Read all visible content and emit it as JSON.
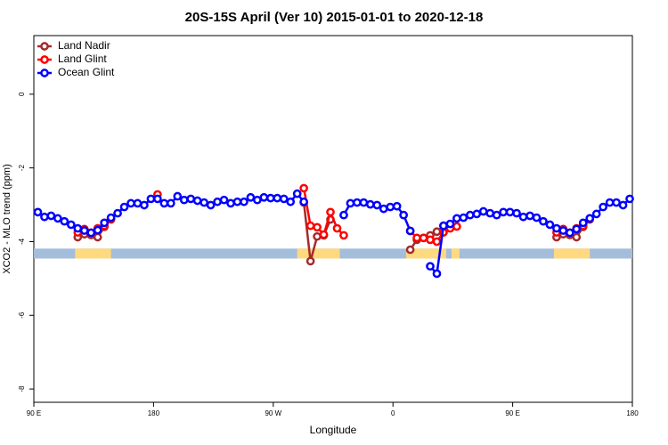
{
  "chart_data": {
    "type": "line",
    "title": "20S-15S April (Ver 10)   2015-01-01 to 2020-12-18",
    "x_label": "Longitude",
    "y_label": "XCO2 - MLO trend (ppm)",
    "xlim": [
      90,
      540
    ],
    "ylim": [
      -8.36,
      1.59
    ],
    "xticks": [
      {
        "value": 90,
        "label": "90 E"
      },
      180,
      {
        "value": 270,
        "label": "90 W"
      },
      {
        "value": 360,
        "label": "0"
      },
      {
        "value": 450,
        "label": "90 E"
      },
      {
        "value": 540,
        "label": "180"
      }
    ],
    "yticks": [
      0,
      -2,
      -4,
      -6,
      -8
    ],
    "legend": "top-left",
    "land_mask": {
      "ylim": [
        -4.46,
        -4.19
      ],
      "ocean_color": "#a4bddb",
      "land_color": "#ffd97f",
      "land": [
        [
          121,
          148
        ],
        [
          288,
          320
        ],
        [
          370,
          400
        ],
        [
          404,
          410
        ],
        [
          481,
          508
        ]
      ]
    },
    "x": [
      93,
      98,
      103,
      108,
      113,
      118,
      123,
      128,
      133,
      138,
      143,
      148,
      153,
      158,
      163,
      168,
      173,
      178,
      183,
      188,
      193,
      198,
      203,
      208,
      213,
      218,
      223,
      228,
      233,
      238,
      243,
      248,
      253,
      258,
      263,
      268,
      273,
      278,
      283,
      288,
      293,
      298,
      303,
      308,
      313,
      318,
      323,
      328,
      333,
      338,
      343,
      348,
      353,
      358,
      363,
      368,
      373,
      378,
      383,
      388,
      393,
      398,
      403,
      408,
      413,
      418,
      423,
      428,
      433,
      438,
      443,
      448,
      453,
      458,
      463,
      468,
      473,
      478,
      483,
      488,
      493,
      498,
      503,
      508,
      513,
      518,
      523,
      528,
      533,
      538
    ],
    "series": [
      {
        "name": "Land Nadir",
        "color": "#a52a2a",
        "values": [
          null,
          null,
          null,
          null,
          null,
          null,
          -3.88,
          -3.8,
          -3.82,
          -3.88,
          -3.6,
          -3.4,
          null,
          null,
          null,
          null,
          null,
          null,
          null,
          null,
          null,
          null,
          null,
          null,
          null,
          null,
          null,
          null,
          null,
          null,
          null,
          null,
          null,
          null,
          null,
          null,
          null,
          null,
          null,
          null,
          -2.94,
          -4.53,
          -3.86,
          -3.83,
          -3.4,
          null,
          null,
          null,
          null,
          null,
          null,
          null,
          null,
          null,
          null,
          null,
          -4.22,
          -3.95,
          -3.9,
          -3.83,
          -3.73,
          -3.57,
          null,
          null,
          null,
          null,
          null,
          null,
          null,
          null,
          null,
          null,
          null,
          null,
          null,
          null,
          null,
          null,
          -3.88,
          -3.8,
          -3.82,
          -3.88,
          -3.6,
          -3.4,
          null,
          null,
          null,
          null,
          null,
          null
        ]
      },
      {
        "name": "Land Glint",
        "color": "#ff0000",
        "values": [
          null,
          null,
          null,
          null,
          null,
          null,
          -3.75,
          -3.66,
          -3.76,
          -3.64,
          -3.57,
          -3.37,
          null,
          null,
          null,
          null,
          null,
          null,
          -2.72,
          null,
          null,
          null,
          null,
          null,
          null,
          null,
          null,
          null,
          null,
          null,
          null,
          null,
          null,
          null,
          null,
          null,
          null,
          null,
          null,
          null,
          -2.55,
          -3.57,
          -3.61,
          -3.81,
          -3.2,
          -3.64,
          -3.83,
          null,
          null,
          null,
          null,
          null,
          null,
          null,
          null,
          null,
          -3.71,
          -3.9,
          -3.9,
          -3.95,
          -4.0,
          -3.75,
          -3.64,
          -3.59,
          null,
          null,
          null,
          null,
          null,
          null,
          null,
          null,
          null,
          null,
          null,
          null,
          null,
          null,
          -3.75,
          -3.66,
          -3.76,
          -3.64,
          -3.57,
          -3.37,
          null,
          null,
          null,
          null,
          null,
          null
        ]
      },
      {
        "name": "Ocean Glint",
        "color": "#0000ff",
        "values": [
          -3.2,
          -3.33,
          -3.3,
          -3.37,
          -3.45,
          -3.54,
          -3.64,
          -3.7,
          -3.76,
          -3.69,
          -3.49,
          -3.35,
          -3.23,
          -3.06,
          -2.96,
          -2.96,
          -3.01,
          -2.84,
          -2.84,
          -2.96,
          -2.96,
          -2.77,
          -2.87,
          -2.84,
          -2.89,
          -2.94,
          -3.01,
          -2.92,
          -2.87,
          -2.96,
          -2.92,
          -2.92,
          -2.8,
          -2.87,
          -2.8,
          -2.82,
          -2.82,
          -2.84,
          -2.92,
          -2.7,
          -2.92,
          null,
          null,
          null,
          null,
          null,
          -3.28,
          -2.96,
          -2.94,
          -2.94,
          -2.99,
          -3.01,
          -3.11,
          -3.06,
          -3.04,
          -3.28,
          -3.71,
          null,
          null,
          -4.67,
          -4.87,
          -3.57,
          -3.52,
          -3.37,
          -3.35,
          -3.28,
          -3.25,
          -3.18,
          -3.23,
          -3.28,
          -3.2,
          -3.2,
          -3.23,
          -3.33,
          -3.3,
          -3.35,
          -3.45,
          -3.54,
          -3.64,
          -3.7,
          -3.76,
          -3.66,
          -3.49,
          -3.37,
          -3.25,
          -3.06,
          -2.94,
          -2.94,
          -3.01,
          -2.84
        ]
      }
    ]
  }
}
